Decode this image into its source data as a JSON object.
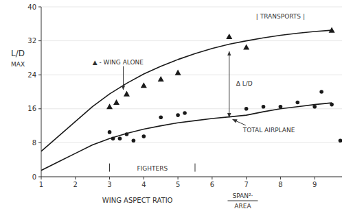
{
  "chart_data": {
    "type": "line",
    "xlabel": "WING ASPECT RATIO",
    "xlabel_fraction": {
      "numerator": "SPAN²‧",
      "denominator": "AREA"
    },
    "ylabel": "L/D",
    "ylabel_sub": "MAX",
    "xlim": [
      1,
      9.8
    ],
    "ylim": [
      0,
      40
    ],
    "xticks": [
      1,
      2,
      3,
      4,
      5,
      6,
      7,
      8,
      9
    ],
    "yticks": [
      0,
      8,
      16,
      24,
      32,
      40
    ],
    "series": [
      {
        "type": "line",
        "color": "#1a1a1a",
        "x": [
          1.0,
          1.5,
          2.0,
          2.5,
          3.0,
          3.5,
          4.0,
          4.5,
          5.0,
          5.5,
          6.0,
          6.5,
          7.0,
          7.5,
          8.0,
          8.5,
          9.0,
          9.5
        ],
        "values": [
          6.0,
          9.5,
          13.0,
          16.5,
          19.5,
          22.0,
          24.2,
          26.0,
          27.6,
          29.0,
          30.2,
          31.2,
          32.0,
          32.7,
          33.3,
          33.8,
          34.2,
          34.5
        ]
      },
      {
        "type": "line",
        "color": "#1a1a1a",
        "x": [
          1.0,
          1.5,
          2.0,
          2.5,
          3.0,
          3.5,
          4.0,
          4.5,
          5.0,
          5.5,
          6.0,
          6.5,
          7.0,
          7.5,
          8.0,
          8.5,
          9.0,
          9.5
        ],
        "values": [
          1.5,
          3.5,
          5.5,
          7.5,
          9.0,
          10.2,
          11.2,
          12.0,
          12.7,
          13.2,
          13.7,
          14.1,
          14.5,
          15.3,
          16.0,
          16.5,
          17.0,
          17.4
        ]
      },
      {
        "type": "scatter",
        "marker": "triangle",
        "color": "#1a1a1a",
        "x": [
          3.0,
          3.2,
          3.5,
          4.0,
          4.5,
          5.0,
          6.5,
          7.0,
          9.5
        ],
        "values": [
          16.5,
          17.5,
          19.5,
          21.5,
          23.0,
          24.5,
          33.0,
          30.5,
          34.5
        ]
      },
      {
        "type": "scatter",
        "marker": "circle",
        "color": "#1a1a1a",
        "x": [
          3.0,
          3.1,
          3.3,
          3.5,
          3.7,
          4.0,
          4.5,
          5.0,
          5.2,
          7.0,
          7.5,
          8.0,
          8.5,
          9.0,
          9.2,
          9.5
        ],
        "values": [
          10.5,
          9.0,
          9.0,
          10.0,
          8.5,
          9.5,
          14.0,
          14.5,
          15.0,
          16.0,
          16.5,
          16.5,
          17.5,
          16.5,
          20.0,
          17.0
        ]
      },
      {
        "type": "scatter",
        "marker": "circle",
        "color": "#1a1a1a",
        "x": [
          9.75
        ],
        "values": [
          8.5
        ]
      }
    ],
    "annotations": [
      {
        "text": "FIGHTERS",
        "x": [
          3.0,
          5.5
        ],
        "y": 2.0
      },
      {
        "text": "| TRANSPORTS |",
        "x": 8.0,
        "y": 37.8
      },
      {
        "text": "Δ L/D",
        "x": 6.7,
        "y": 22.0,
        "span_x": 6.5,
        "span_y": [
          29.5,
          14.0
        ]
      },
      {
        "text": "▲ - WING ALONE",
        "x": 2.5,
        "y": 26.5,
        "arrow_x": 3.4,
        "arrow_y": 20.5
      },
      {
        "text": "TOTAL AIRPLANE",
        "x": 6.9,
        "y": 10.5,
        "arrow_x": 6.6,
        "arrow_y": 13.5
      }
    ]
  }
}
